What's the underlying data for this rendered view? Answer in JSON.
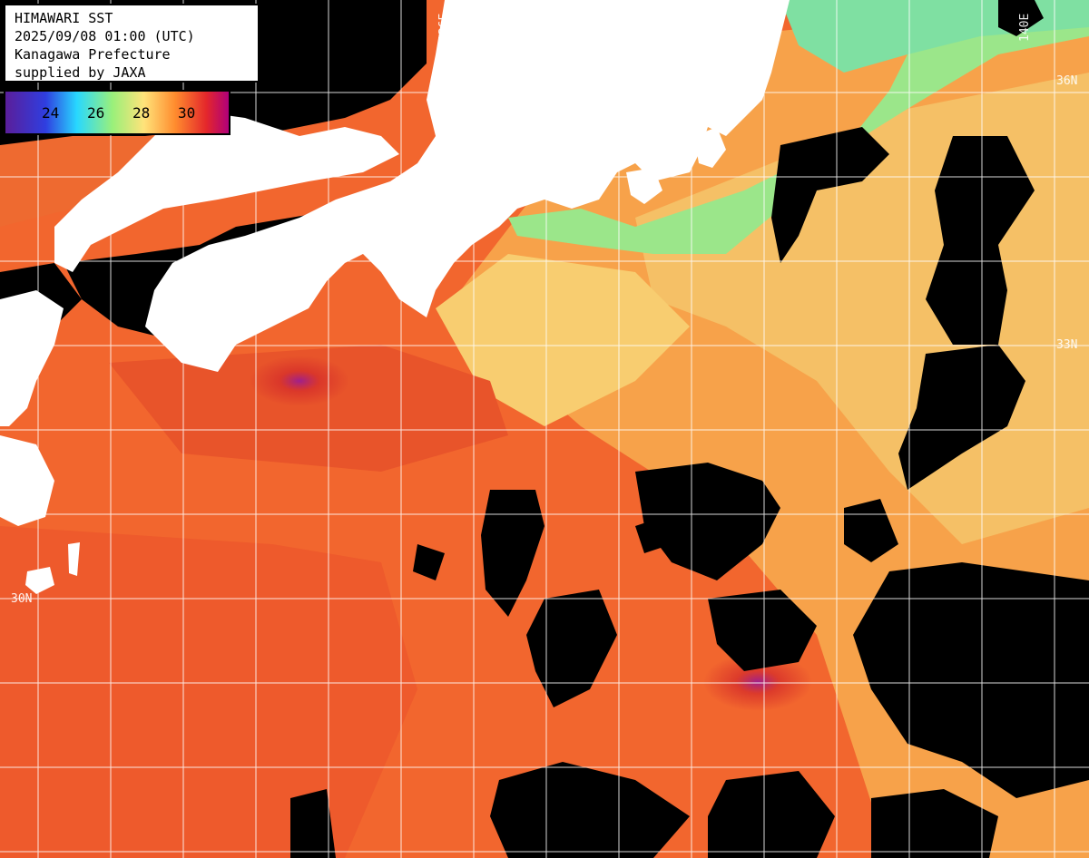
{
  "header": {
    "title": "HIMAWARI SST",
    "datetime": "2025/09/08 01:00 (UTC)",
    "region": "Kanagawa Prefecture",
    "credit": "supplied by JAXA"
  },
  "color_scale": {
    "ticks": [
      "24",
      "26",
      "28",
      "30"
    ],
    "colors": [
      "#5a1e9a",
      "#2f3ee0",
      "#28d8ff",
      "#9af07a",
      "#ffe37a",
      "#ff8c2e",
      "#e4272b",
      "#b0007a"
    ]
  },
  "grid_labels": {
    "lon_136": "136E",
    "lon_140": "140E",
    "lat_36": "36N",
    "lat_33": "33N",
    "lat_30": "30N",
    "lat_33_left": "33"
  },
  "colors": {
    "land": "#ffffff",
    "cloud": "#000000",
    "gridline": "#ffffff",
    "sea_warm": "#f2662e",
    "sea_hot": "#d73a26",
    "sea_mild": "#f7a24a",
    "sea_cool": "#f5d874",
    "sea_coast": "#88e894"
  }
}
